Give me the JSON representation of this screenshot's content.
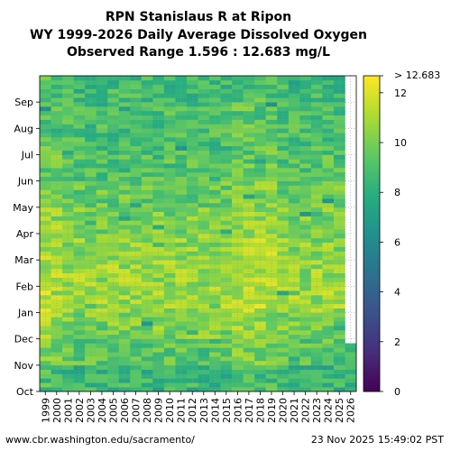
{
  "chart_data": {
    "type": "heatmap",
    "title_lines": [
      "RPN Stanislaus R at Ripon",
      "WY 1999-2026 Daily Average Dissolved Oxygen",
      "Observed Range 1.596 : 12.683 mg/L"
    ],
    "x_categories": [
      "1999",
      "2000",
      "2001",
      "2002",
      "2003",
      "2004",
      "2005",
      "2006",
      "2007",
      "2008",
      "2009",
      "2010",
      "2011",
      "2012",
      "2013",
      "2014",
      "2015",
      "2016",
      "2017",
      "2018",
      "2019",
      "2020",
      "2021",
      "2022",
      "2023",
      "2024",
      "2025",
      "2026"
    ],
    "y_categories": [
      "Oct",
      "Nov",
      "Dec",
      "Jan",
      "Feb",
      "Mar",
      "Apr",
      "May",
      "Jun",
      "Jul",
      "Aug",
      "Sep"
    ],
    "colorbar": {
      "min": 0,
      "max": 12.683,
      "ticks": [
        0,
        2,
        4,
        6,
        8,
        10,
        12
      ],
      "top_label": "> 12.683",
      "colormap": [
        "#440154",
        "#472d7b",
        "#3b528b",
        "#2c728e",
        "#21918c",
        "#28ae80",
        "#5ec962",
        "#addc30",
        "#fde725"
      ]
    },
    "grid": true,
    "missing_color": "#ffffff",
    "monthly_typical_values": [
      8.4,
      9.3,
      10.1,
      10.7,
      10.6,
      10.4,
      10.0,
      9.6,
      9.1,
      8.9,
      8.8,
      8.6
    ],
    "high_years": [
      "1999",
      "2000",
      "2016",
      "2017",
      "2018",
      "2019"
    ],
    "last_year_coverage_fraction": 0.15
  },
  "footer": {
    "source": "www.cbr.washington.edu/sacramento/",
    "timestamp": "23 Nov 2025 15:49:02 PST"
  }
}
